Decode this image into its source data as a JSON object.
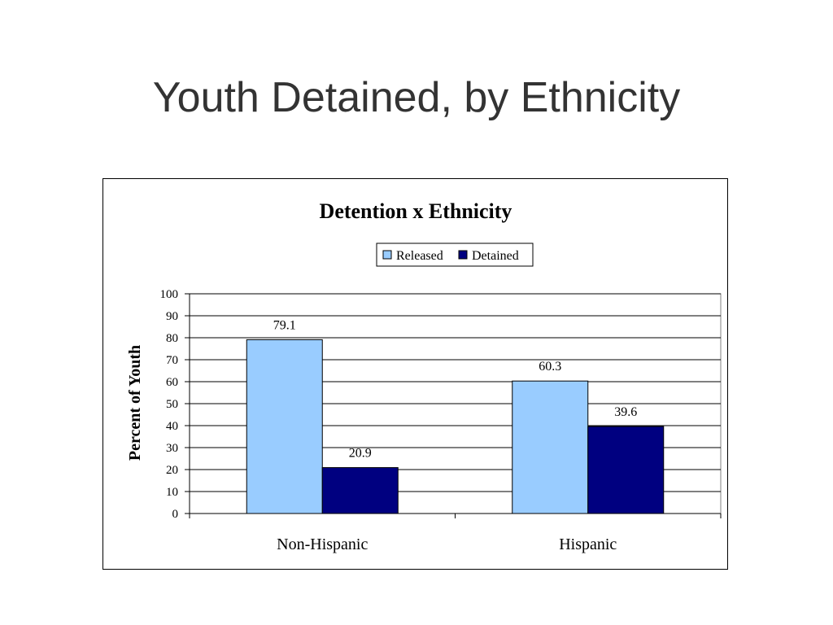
{
  "slide": {
    "title": "Youth Detained, by Ethnicity"
  },
  "colors": {
    "released": "#99CCFF",
    "detained": "#000080"
  },
  "chart_data": {
    "type": "bar",
    "title": "Detention x Ethnicity",
    "xlabel": "",
    "ylabel": "Percent of Youth",
    "categories": [
      "Non-Hispanic",
      "Hispanic"
    ],
    "series": [
      {
        "name": "Released",
        "values": [
          79.1,
          60.3
        ],
        "labels": [
          "79.1",
          "60.3"
        ]
      },
      {
        "name": "Detained",
        "values": [
          20.9,
          39.6
        ],
        "labels": [
          "20.9",
          "39.6"
        ]
      }
    ],
    "ylim": [
      0,
      100
    ],
    "yticks": [
      "0",
      "10",
      "20",
      "30",
      "40",
      "50",
      "60",
      "70",
      "80",
      "90",
      "100"
    ],
    "grid": true,
    "legend": "top-center"
  }
}
